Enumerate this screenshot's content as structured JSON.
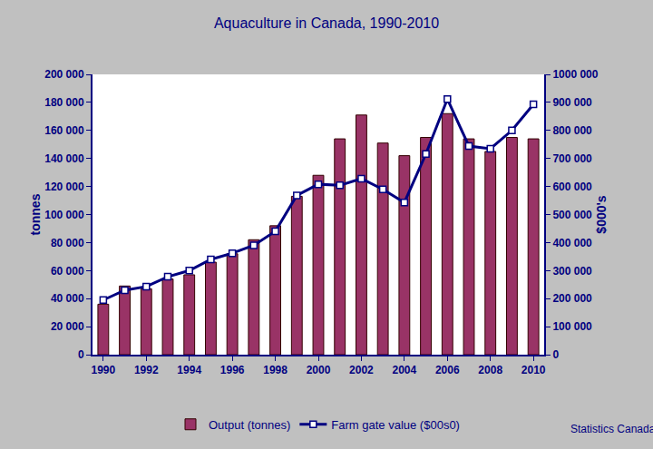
{
  "chart_data": {
    "type": "bar",
    "title": "Aquaculture in Canada, 1990-2010",
    "y_label": "tonnes",
    "y2_label": "$000's",
    "annotations": [
      "Statistics Canada"
    ],
    "x": [
      1990,
      1991,
      1992,
      1993,
      1994,
      1995,
      1996,
      1997,
      1998,
      1999,
      2000,
      2001,
      2002,
      2003,
      2004,
      2005,
      2006,
      2007,
      2008,
      2009,
      2010
    ],
    "xlim": [
      1989.5,
      2010.5
    ],
    "xticks": [
      1990,
      1992,
      1994,
      1996,
      1998,
      2000,
      2002,
      2004,
      2006,
      2008,
      2010
    ],
    "ylim": [
      0,
      200000
    ],
    "yticks": [
      0,
      {
        "value": 20000,
        "label": "20 000"
      },
      {
        "value": 40000,
        "label": "40 000"
      },
      {
        "value": 60000,
        "label": "60 000"
      },
      {
        "value": 80000,
        "label": "80 000"
      },
      {
        "value": 100000,
        "label": "100 000"
      },
      {
        "value": 120000,
        "label": "120 000"
      },
      {
        "value": 140000,
        "label": "140 000"
      },
      {
        "value": 160000,
        "label": "160 000"
      },
      {
        "value": 180000,
        "label": "180 000"
      },
      {
        "value": 200000,
        "label": "200 000"
      }
    ],
    "y2lim": [
      0,
      1000000
    ],
    "y2ticks": [
      0,
      {
        "value": 100000,
        "label": "100 000"
      },
      {
        "value": 200000,
        "label": "200 000"
      },
      {
        "value": 300000,
        "label": "300 000"
      },
      {
        "value": 400000,
        "label": "400 000"
      },
      {
        "value": 500000,
        "label": "500 000"
      },
      {
        "value": 600000,
        "label": "600 000"
      },
      {
        "value": 700000,
        "label": "700 000"
      },
      {
        "value": 800000,
        "label": "800 000"
      },
      {
        "value": 900000,
        "label": "900 000"
      },
      {
        "value": 1000000,
        "label": "1000 000"
      }
    ],
    "grid": false,
    "legend": "bottom",
    "series": [
      {
        "name": "Output (tonnes)",
        "type": "bar",
        "color": "#993366",
        "values": [
          36000,
          49000,
          47000,
          54000,
          57000,
          66000,
          72000,
          82000,
          92000,
          113000,
          128000,
          154000,
          171000,
          151000,
          142000,
          155000,
          172000,
          154000,
          145000,
          155000,
          154000
        ]
      },
      {
        "name": "Farm gate value ($00s0)",
        "type": "line",
        "axis": "y2",
        "color": "#000080",
        "marker": "square",
        "values": [
          195000,
          230000,
          243000,
          278000,
          300000,
          340000,
          362000,
          390000,
          440000,
          568000,
          608000,
          604000,
          628000,
          590000,
          543000,
          716000,
          912000,
          744000,
          735000,
          800000,
          893000
        ]
      }
    ]
  }
}
